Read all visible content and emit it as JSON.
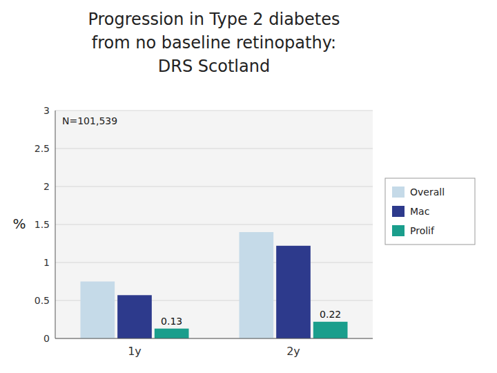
{
  "chart_data": {
    "type": "bar",
    "title": [
      "Progression in Type 2 diabetes",
      "from no baseline retinopathy:",
      "DRS Scotland"
    ],
    "annotations": [
      "N=101,539"
    ],
    "y_label": "%",
    "categories": [
      "1y",
      "2y"
    ],
    "series": [
      {
        "name": "Overall",
        "color": "#c5dae8",
        "values": [
          0.75,
          1.4
        ]
      },
      {
        "name": "Mac",
        "color": "#2d3a8c",
        "values": [
          0.57,
          1.22
        ]
      },
      {
        "name": "Prolif",
        "color": "#1a9e8c",
        "values": [
          0.13,
          0.22
        ],
        "data_labels": true
      }
    ],
    "ylim": [
      0,
      3
    ],
    "yticks": [
      0,
      0.5,
      1,
      1.5,
      2,
      2.5,
      3
    ],
    "grid": true,
    "legend": "right"
  }
}
